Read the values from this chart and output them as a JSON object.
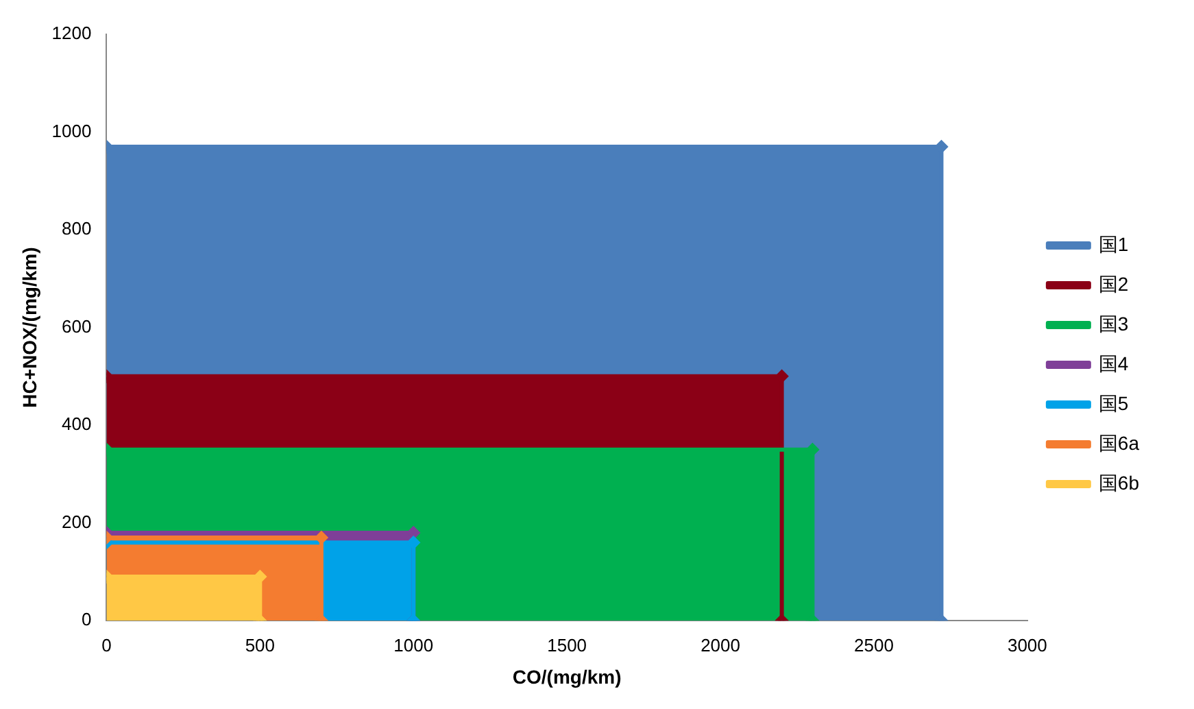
{
  "chart_data": {
    "type": "area",
    "xlabel": "CO/(mg/km)",
    "ylabel": "HC+NOX/(mg/km)",
    "xlim": [
      0,
      3000
    ],
    "xticks": [
      0,
      500,
      1000,
      1500,
      2000,
      2500,
      3000
    ],
    "ylim": [
      0,
      1200
    ],
    "yticks": [
      0,
      200,
      400,
      600,
      800,
      1000,
      1200
    ],
    "grid": false,
    "legend": "right",
    "marker": "diamond",
    "series": [
      {
        "name": "国1",
        "color": "#4a7ebb",
        "x": [
          0,
          2720,
          2720
        ],
        "values": [
          970,
          970,
          0
        ]
      },
      {
        "name": "国2",
        "color": "#8b0016",
        "x": [
          0,
          2200,
          2200
        ],
        "values": [
          500,
          500,
          0
        ]
      },
      {
        "name": "国3",
        "color": "#00b050",
        "x": [
          0,
          2300,
          2300
        ],
        "values": [
          350,
          350,
          0
        ]
      },
      {
        "name": "国4",
        "color": "#7f3f98",
        "x": [
          0,
          1000,
          1000
        ],
        "values": [
          180,
          180,
          0
        ]
      },
      {
        "name": "国5",
        "color": "#00a2e8",
        "x": [
          0,
          1000,
          1000
        ],
        "values": [
          160,
          160,
          0
        ]
      },
      {
        "name": "国6a",
        "color": "#f47c30",
        "x": [
          0,
          700,
          700
        ],
        "values": [
          170,
          170,
          0
        ]
      },
      {
        "name": "国6b",
        "color": "#ffc845",
        "x": [
          0,
          500,
          500
        ],
        "values": [
          90,
          90,
          0
        ]
      }
    ]
  }
}
